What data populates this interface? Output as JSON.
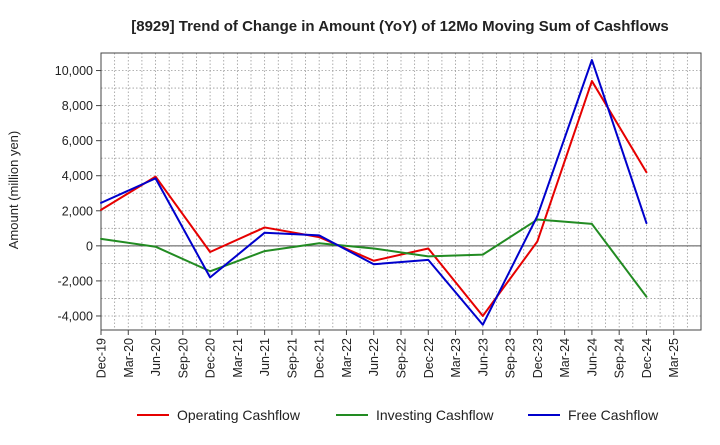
{
  "chart_data": {
    "type": "line",
    "title": "[8929]  Trend of Change in Amount (YoY) of 12Mo Moving Sum of Cashflows",
    "xlabel": "",
    "ylabel": "Amount (million yen)",
    "ylim": [
      -4800,
      11000
    ],
    "yticks": [
      -4000,
      -2000,
      0,
      2000,
      4000,
      6000,
      8000,
      10000
    ],
    "ytick_labels": [
      "-4,000",
      "-2,000",
      "0",
      "2,000",
      "4,000",
      "6,000",
      "8,000",
      "10,000"
    ],
    "categories": [
      "Dec-19",
      "Mar-20",
      "Jun-20",
      "Sep-20",
      "Dec-20",
      "Mar-21",
      "Jun-21",
      "Sep-21",
      "Dec-21",
      "Mar-22",
      "Jun-22",
      "Sep-22",
      "Dec-22",
      "Mar-23",
      "Jun-23",
      "Sep-23",
      "Dec-23",
      "Mar-24",
      "Jun-24",
      "Sep-24",
      "Dec-24",
      "Mar-25"
    ],
    "grid": true,
    "legend_position": "bottom",
    "series": [
      {
        "name": "Operating Cashflow",
        "color": "#e60000",
        "values": [
          2050,
          null,
          3950,
          null,
          -350,
          null,
          1050,
          null,
          500,
          null,
          -850,
          null,
          -150,
          null,
          -4000,
          null,
          250,
          null,
          9400,
          null,
          4200,
          null
        ]
      },
      {
        "name": "Investing Cashflow",
        "color": "#228b22",
        "values": [
          400,
          null,
          -50,
          null,
          -1450,
          null,
          -300,
          null,
          150,
          null,
          -150,
          null,
          -600,
          null,
          -500,
          null,
          1500,
          null,
          1250,
          null,
          -2900,
          null
        ]
      },
      {
        "name": "Free Cashflow",
        "color": "#0000cc",
        "values": [
          2450,
          null,
          3850,
          null,
          -1800,
          null,
          750,
          null,
          600,
          null,
          -1050,
          null,
          -800,
          null,
          -4500,
          null,
          1700,
          null,
          10600,
          null,
          1300,
          null
        ]
      }
    ]
  }
}
